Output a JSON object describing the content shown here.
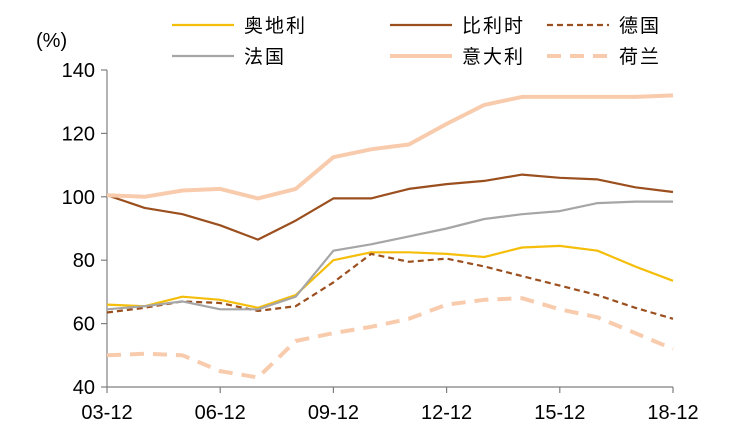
{
  "chart_data": {
    "type": "line",
    "unit_label": "(%)",
    "x_tick_labels": [
      "03-12",
      "06-12",
      "09-12",
      "12-12",
      "15-12",
      "18-12"
    ],
    "x": [
      2003,
      2004,
      2005,
      2006,
      2007,
      2008,
      2009,
      2010,
      2011,
      2012,
      2013,
      2014,
      2015,
      2016,
      2017,
      2018
    ],
    "ylim": [
      40,
      140
    ],
    "y_ticks": [
      40,
      60,
      80,
      100,
      120,
      140
    ],
    "legend_placement": "top",
    "series": [
      {
        "name": "奥地利",
        "color": "#f5be0b",
        "dash": "solid",
        "values": [
          66,
          65.5,
          68.5,
          67.5,
          65,
          69,
          80,
          82.5,
          82.5,
          82,
          81,
          84,
          84.5,
          83,
          78,
          73.5
        ]
      },
      {
        "name": "比利时",
        "color": "#9b4f1e",
        "dash": "solid",
        "values": [
          100.5,
          96.5,
          94.5,
          91,
          86.5,
          92.5,
          99.5,
          99.5,
          102.5,
          104,
          105,
          107,
          106,
          105.5,
          103,
          101.5
        ]
      },
      {
        "name": "德国",
        "color": "#9b4f1e",
        "dash": "dashed",
        "values": [
          63.5,
          65,
          67,
          66.5,
          64,
          65.5,
          73,
          82,
          79.5,
          80.5,
          78,
          75,
          72,
          69,
          65,
          61.5
        ]
      },
      {
        "name": "法国",
        "color": "#a6a6a6",
        "dash": "solid",
        "values": [
          64.5,
          65.5,
          67,
          64.5,
          64.5,
          68.5,
          83,
          85,
          87.5,
          90,
          93,
          94.5,
          95.5,
          98,
          98.5,
          98.5
        ]
      },
      {
        "name": "意大利",
        "color": "#f8cbad",
        "dash": "solid",
        "values": [
          100.5,
          100,
          102,
          102.5,
          99.5,
          102.5,
          112.5,
          115,
          116.5,
          123,
          129,
          131.5,
          131.5,
          131.5,
          131.5,
          132
        ]
      },
      {
        "name": "荷兰",
        "color": "#f8cbad",
        "dash": "dashed",
        "values": [
          50,
          50.5,
          50,
          45,
          43,
          54.5,
          57,
          59,
          61.5,
          66,
          67.5,
          68,
          64.5,
          62,
          57,
          52
        ]
      }
    ]
  }
}
